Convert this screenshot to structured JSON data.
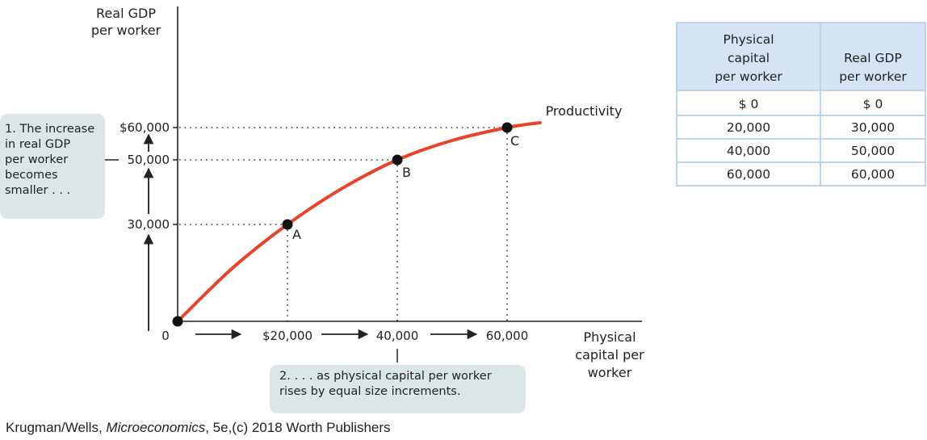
{
  "chart_data": {
    "type": "line",
    "y_title_lines": [
      "Real GDP",
      "per worker"
    ],
    "x_title_lines": [
      "Physical",
      "capital per",
      "worker"
    ],
    "origin_label": "0",
    "x_ticks": [
      {
        "value": 20000,
        "label": "$20,000"
      },
      {
        "value": 40000,
        "label": "40,000"
      },
      {
        "value": 60000,
        "label": "60,000"
      }
    ],
    "y_ticks": [
      {
        "value": 30000,
        "label": "30,000"
      },
      {
        "value": 50000,
        "label": "50,000"
      },
      {
        "value": 60000,
        "label": "$60,000"
      }
    ],
    "series": [
      {
        "name": "Productivity",
        "color": "#e8432a",
        "x": [
          0,
          10000,
          20000,
          30000,
          40000,
          50000,
          60000,
          66000
        ],
        "y": [
          0,
          16500,
          30000,
          41200,
          50000,
          56000,
          60000,
          61500
        ]
      }
    ],
    "points": [
      {
        "label": "A",
        "x": 20000,
        "y": 30000
      },
      {
        "label": "B",
        "x": 40000,
        "y": 50000
      },
      {
        "label": "C",
        "x": 60000,
        "y": 60000
      }
    ],
    "xlim": [
      0,
      86000
    ],
    "ylim": [
      0,
      80000
    ],
    "grid": false
  },
  "notes": {
    "left_lines": [
      "1. The increase",
      "in real GDP",
      "per worker",
      "becomes",
      "smaller . . ."
    ],
    "bottom_lines": [
      "2. . . . as physical capital per worker",
      "rises by equal size increments."
    ]
  },
  "table": {
    "headers": [
      [
        "Physical",
        "capital",
        "per worker"
      ],
      [
        "Real GDP",
        "per worker"
      ]
    ],
    "rows": [
      [
        "$  0",
        "$  0"
      ],
      [
        "20,000",
        "30,000"
      ],
      [
        "40,000",
        "50,000"
      ],
      [
        "60,000",
        "60,000"
      ]
    ]
  },
  "credit": {
    "prefix": "Krugman/Wells, ",
    "title": "Microeconomics",
    "suffix": ", 5e,(c) 2018 Worth Publishers"
  }
}
